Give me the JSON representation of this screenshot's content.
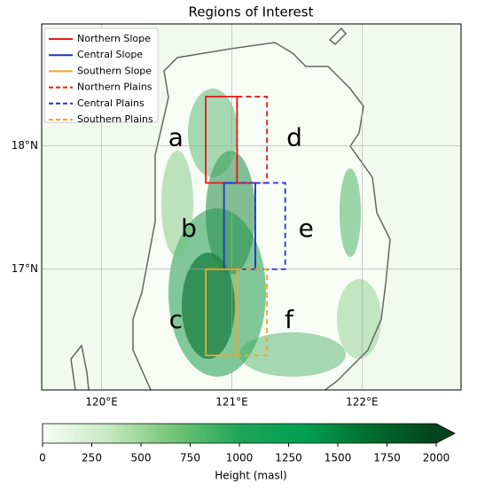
{
  "chart_data": {
    "type": "map",
    "title": "Regions of Interest",
    "xlim": [
      119.54,
      122.76
    ],
    "ylim": [
      16.02,
      18.99
    ],
    "xticks": [
      {
        "value": 120,
        "label": "120°E"
      },
      {
        "value": 121,
        "label": "121°E"
      },
      {
        "value": 122,
        "label": "122°E"
      }
    ],
    "yticks": [
      {
        "value": 17,
        "label": "17°N"
      },
      {
        "value": 18,
        "label": "18°N"
      }
    ],
    "grid": true,
    "legend": "upper left",
    "regions": [
      {
        "name": "Northern Slope",
        "color": "#e31a1c",
        "dashed": false,
        "lon": [
          120.8,
          121.04
        ],
        "lat": [
          17.7,
          18.4
        ]
      },
      {
        "name": "Central Slope",
        "color": "#1f35c8",
        "dashed": false,
        "lon": [
          120.94,
          121.18
        ],
        "lat": [
          17.0,
          17.7
        ]
      },
      {
        "name": "Southern Slope",
        "color": "#f5a623",
        "dashed": false,
        "lon": [
          120.8,
          121.04
        ],
        "lat": [
          16.3,
          17.0
        ]
      },
      {
        "name": "Northern Plains",
        "color": "#e31a1c",
        "dashed": true,
        "lon": [
          121.04,
          121.27
        ],
        "lat": [
          17.7,
          18.4
        ]
      },
      {
        "name": "Central Plains",
        "color": "#1f35c8",
        "dashed": true,
        "lon": [
          121.18,
          121.41
        ],
        "lat": [
          17.0,
          17.7
        ]
      },
      {
        "name": "Southern Plains",
        "color": "#f5a623",
        "dashed": true,
        "lon": [
          121.04,
          121.27
        ],
        "lat": [
          16.3,
          17.0
        ]
      }
    ],
    "annotations": [
      {
        "text": "a",
        "x": 120.57,
        "y": 18.06
      },
      {
        "text": "b",
        "x": 120.67,
        "y": 17.32
      },
      {
        "text": "c",
        "x": 120.57,
        "y": 16.58
      },
      {
        "text": "d",
        "x": 121.48,
        "y": 18.06
      },
      {
        "text": "e",
        "x": 121.57,
        "y": 17.32
      },
      {
        "text": "f",
        "x": 121.44,
        "y": 16.58
      }
    ],
    "colorbar": {
      "label": "Height (masl)",
      "lim": [
        0,
        2000
      ],
      "ticks": [
        0,
        250,
        500,
        750,
        1000,
        1250,
        1500,
        1750,
        2000
      ],
      "colors": [
        "#f7fcf5",
        "#c7e9c0",
        "#74c476",
        "#1fa55a",
        "#00a050",
        "#006d2c",
        "#00441b"
      ],
      "extend": "max"
    }
  }
}
